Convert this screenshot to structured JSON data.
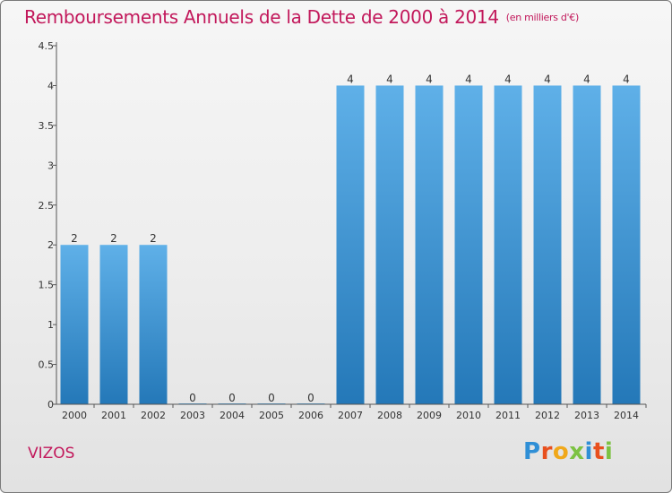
{
  "header": {
    "title": "Remboursements Annuels de la Dette de 2000 à 2014",
    "unit": "(en milliers d'€)"
  },
  "footer": {
    "commune": "VIZOS",
    "brand": "Proxiti"
  },
  "colors": {
    "title": "#c2185b",
    "bar_top": "#5fb0e8",
    "bar_bottom": "#2478b8",
    "logo_letters": [
      "#2f8fd6",
      "#e8501e",
      "#f0a81a",
      "#7cc242",
      "#2f8fd6",
      "#e8501e",
      "#7cc242"
    ]
  },
  "chart_data": {
    "type": "bar",
    "title": "Remboursements Annuels de la Dette de 2000 à 2014",
    "xlabel": "",
    "ylabel": "",
    "categories": [
      "2000",
      "2001",
      "2002",
      "2003",
      "2004",
      "2005",
      "2006",
      "2007",
      "2008",
      "2009",
      "2010",
      "2011",
      "2012",
      "2013",
      "2014"
    ],
    "values": [
      2,
      2,
      2,
      0,
      0,
      0,
      0,
      4,
      4,
      4,
      4,
      4,
      4,
      4,
      4
    ],
    "data_labels": [
      "2",
      "2",
      "2",
      "0",
      "0",
      "0",
      "0",
      "4",
      "4",
      "4",
      "4",
      "4",
      "4",
      "4",
      "4"
    ],
    "yticks": [
      "0",
      "0.5",
      "1",
      "1.5",
      "2",
      "2.5",
      "3",
      "3.5",
      "4",
      "4.5"
    ],
    "ylim": [
      0,
      4.5
    ],
    "grid": false,
    "legend": "none"
  }
}
